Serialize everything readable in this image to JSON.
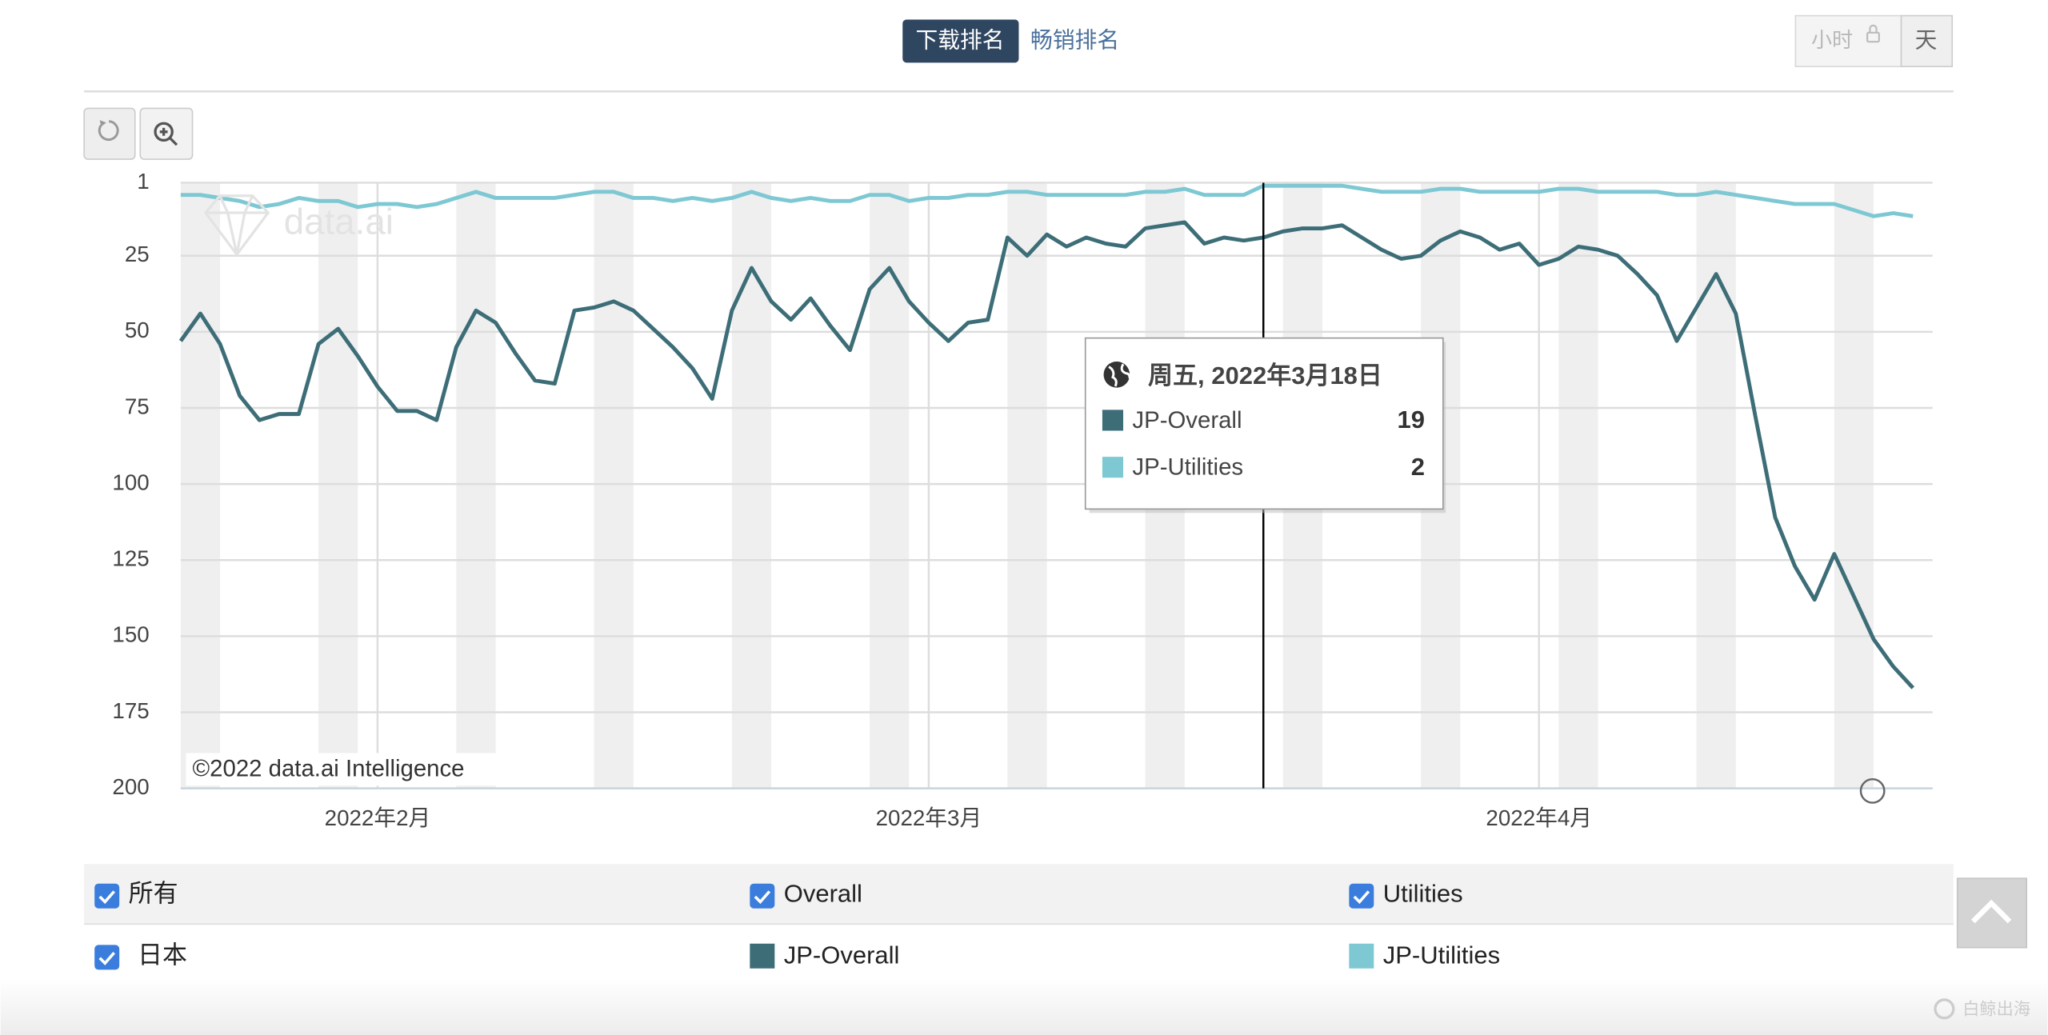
{
  "toolbar": {
    "tabs": [
      "下载排名",
      "畅销排名"
    ],
    "granularity": [
      "小时",
      "天"
    ]
  },
  "chart_data": {
    "type": "line",
    "x": [
      "2022-01-22",
      "2022-01-23",
      "2022-01-24",
      "2022-01-25",
      "2022-01-26",
      "2022-01-27",
      "2022-01-28",
      "2022-01-29",
      "2022-01-30",
      "2022-01-31",
      "2022-02-01",
      "2022-02-02",
      "2022-02-03",
      "2022-02-04",
      "2022-02-05",
      "2022-02-06",
      "2022-02-07",
      "2022-02-08",
      "2022-02-09",
      "2022-02-10",
      "2022-02-11",
      "2022-02-12",
      "2022-02-13",
      "2022-02-14",
      "2022-02-15",
      "2022-02-16",
      "2022-02-17",
      "2022-02-18",
      "2022-02-19",
      "2022-02-20",
      "2022-02-21",
      "2022-02-22",
      "2022-02-23",
      "2022-02-24",
      "2022-02-25",
      "2022-02-26",
      "2022-02-27",
      "2022-02-28",
      "2022-03-01",
      "2022-03-02",
      "2022-03-03",
      "2022-03-04",
      "2022-03-05",
      "2022-03-06",
      "2022-03-07",
      "2022-03-08",
      "2022-03-09",
      "2022-03-10",
      "2022-03-11",
      "2022-03-12",
      "2022-03-13",
      "2022-03-14",
      "2022-03-15",
      "2022-03-16",
      "2022-03-17",
      "2022-03-18",
      "2022-03-19",
      "2022-03-20",
      "2022-03-21",
      "2022-03-22",
      "2022-03-23",
      "2022-03-24",
      "2022-03-25",
      "2022-03-26",
      "2022-03-27",
      "2022-03-28",
      "2022-03-29",
      "2022-03-30",
      "2022-03-31",
      "2022-04-01",
      "2022-04-02",
      "2022-04-03",
      "2022-04-04",
      "2022-04-05",
      "2022-04-06",
      "2022-04-07",
      "2022-04-08",
      "2022-04-09",
      "2022-04-10",
      "2022-04-11",
      "2022-04-12",
      "2022-04-13",
      "2022-04-14",
      "2022-04-15",
      "2022-04-16",
      "2022-04-17",
      "2022-04-18",
      "2022-04-19",
      "2022-04-20"
    ],
    "xlim": [
      "2022-01-22",
      "2022-04-20"
    ],
    "xticks": [
      {
        "value": "2022-02-01",
        "label": "2022年2月"
      },
      {
        "value": "2022-03-01",
        "label": "2022年3月"
      },
      {
        "value": "2022-04-01",
        "label": "2022年4月"
      }
    ],
    "ylim": [
      1,
      200
    ],
    "y_inverted": true,
    "yticks": [
      1,
      25,
      50,
      75,
      100,
      125,
      150,
      175,
      200
    ],
    "grid": true,
    "series": [
      {
        "name": "JP-Overall",
        "color": "#3d6e78",
        "values": [
          53,
          44,
          54,
          71,
          79,
          77,
          77,
          54,
          49,
          58,
          68,
          76,
          76,
          79,
          55,
          43,
          47,
          57,
          66,
          67,
          43,
          42,
          40,
          43,
          49,
          55,
          62,
          72,
          43,
          29,
          40,
          46,
          39,
          48,
          56,
          36,
          29,
          40,
          47,
          53,
          47,
          46,
          19,
          25,
          18,
          22,
          19,
          21,
          22,
          16,
          15,
          14,
          21,
          19,
          20,
          19,
          17,
          16,
          16,
          15,
          19,
          23,
          26,
          25,
          20,
          17,
          19,
          23,
          21,
          28,
          26,
          22,
          23,
          25,
          31,
          38,
          53,
          42,
          31,
          44,
          78,
          111,
          127,
          138,
          123,
          137,
          151,
          160,
          167
        ]
      },
      {
        "name": "JP-Utilities",
        "color": "#7ec8d3",
        "values": [
          5,
          5,
          6,
          7,
          9,
          8,
          6,
          7,
          7,
          9,
          8,
          8,
          9,
          8,
          6,
          4,
          6,
          6,
          6,
          6,
          5,
          4,
          4,
          6,
          6,
          7,
          6,
          7,
          6,
          4,
          6,
          7,
          6,
          7,
          7,
          5,
          5,
          7,
          6,
          6,
          5,
          5,
          4,
          4,
          5,
          5,
          5,
          5,
          5,
          4,
          4,
          3,
          5,
          5,
          5,
          2,
          2,
          2,
          2,
          2,
          3,
          4,
          4,
          4,
          3,
          3,
          4,
          4,
          4,
          4,
          3,
          3,
          4,
          4,
          4,
          4,
          5,
          5,
          4,
          5,
          6,
          7,
          8,
          8,
          8,
          10,
          12,
          11,
          12
        ]
      }
    ],
    "watermark": "data.ai",
    "credit": "©2022 data.ai Intelligence",
    "tooltip": {
      "title": "周五, 2022年3月18日"
    }
  },
  "filters": {
    "all": "所有",
    "categories": [
      "Overall",
      "Utilities"
    ],
    "country": "日本"
  },
  "footer_watermark": "白鲸出海"
}
